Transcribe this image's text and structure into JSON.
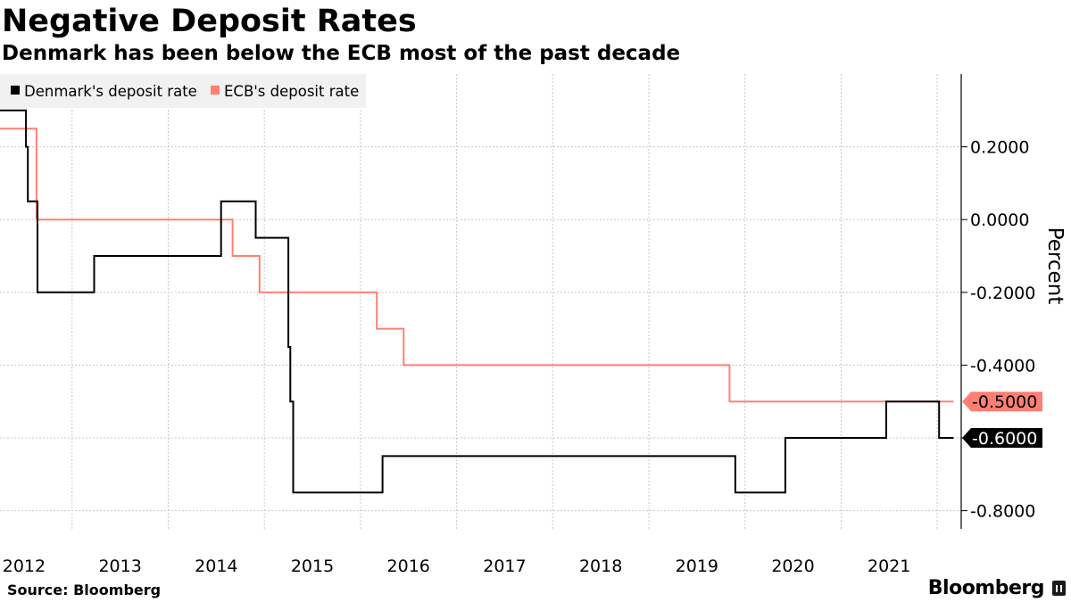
{
  "chart_data": {
    "type": "line",
    "step": true,
    "title": "Negative Deposit Rates",
    "subtitle": "Denmark has been below the ECB most of the past decade",
    "ylabel": "Percent",
    "xlabel": "",
    "ylim": [
      -0.85,
      0.4
    ],
    "xlim": [
      2011.75,
      2021.75
    ],
    "y_ticks": [
      {
        "value": 0.2,
        "label": "0.2000"
      },
      {
        "value": 0.0,
        "label": "0.0000"
      },
      {
        "value": -0.2,
        "label": "-0.2000"
      },
      {
        "value": -0.4,
        "label": "-0.4000"
      },
      {
        "value": -0.6,
        "label": "-0.6000"
      },
      {
        "value": -0.8,
        "label": "-0.8000"
      }
    ],
    "x_ticks": [
      {
        "value": 2012,
        "label": "2012"
      },
      {
        "value": 2013,
        "label": "2013"
      },
      {
        "value": 2014,
        "label": "2014"
      },
      {
        "value": 2015,
        "label": "2015"
      },
      {
        "value": 2016,
        "label": "2016"
      },
      {
        "value": 2017,
        "label": "2017"
      },
      {
        "value": 2018,
        "label": "2018"
      },
      {
        "value": 2019,
        "label": "2019"
      },
      {
        "value": 2020,
        "label": "2020"
      },
      {
        "value": 2021,
        "label": "2021"
      }
    ],
    "grid": true,
    "legend_position": "top-left",
    "series": [
      {
        "name": "Denmark's deposit rate",
        "color": "#000000",
        "last_label": "-0.6000",
        "points": [
          [
            2011.75,
            0.3
          ],
          [
            2012.02,
            0.3
          ],
          [
            2012.02,
            0.2
          ],
          [
            2012.04,
            0.2
          ],
          [
            2012.04,
            0.05
          ],
          [
            2012.14,
            0.05
          ],
          [
            2012.14,
            -0.2
          ],
          [
            2012.73,
            -0.2
          ],
          [
            2012.73,
            -0.1
          ],
          [
            2014.05,
            -0.1
          ],
          [
            2014.05,
            0.05
          ],
          [
            2014.41,
            0.05
          ],
          [
            2014.41,
            -0.05
          ],
          [
            2014.75,
            -0.05
          ],
          [
            2014.75,
            -0.35
          ],
          [
            2014.77,
            -0.35
          ],
          [
            2014.77,
            -0.5
          ],
          [
            2014.8,
            -0.5
          ],
          [
            2014.8,
            -0.75
          ],
          [
            2015.73,
            -0.75
          ],
          [
            2015.73,
            -0.65
          ],
          [
            2019.4,
            -0.65
          ],
          [
            2019.4,
            -0.75
          ],
          [
            2019.92,
            -0.75
          ],
          [
            2019.92,
            -0.6
          ],
          [
            2020.97,
            -0.6
          ],
          [
            2020.97,
            -0.5
          ],
          [
            2021.52,
            -0.5
          ],
          [
            2021.52,
            -0.6
          ],
          [
            2021.67,
            -0.6
          ]
        ]
      },
      {
        "name": "ECB's deposit rate",
        "color": "#ff7f74",
        "last_label": "-0.5000",
        "points": [
          [
            2011.75,
            0.25
          ],
          [
            2012.13,
            0.25
          ],
          [
            2012.13,
            0.0
          ],
          [
            2014.17,
            0.0
          ],
          [
            2014.17,
            -0.1
          ],
          [
            2014.45,
            -0.1
          ],
          [
            2014.45,
            -0.2
          ],
          [
            2015.67,
            -0.2
          ],
          [
            2015.67,
            -0.3
          ],
          [
            2015.95,
            -0.3
          ],
          [
            2015.95,
            -0.4
          ],
          [
            2019.34,
            -0.4
          ],
          [
            2019.34,
            -0.5
          ],
          [
            2021.67,
            -0.5
          ]
        ]
      }
    ],
    "source": "Source: Bloomberg",
    "brand": "Bloomberg"
  }
}
